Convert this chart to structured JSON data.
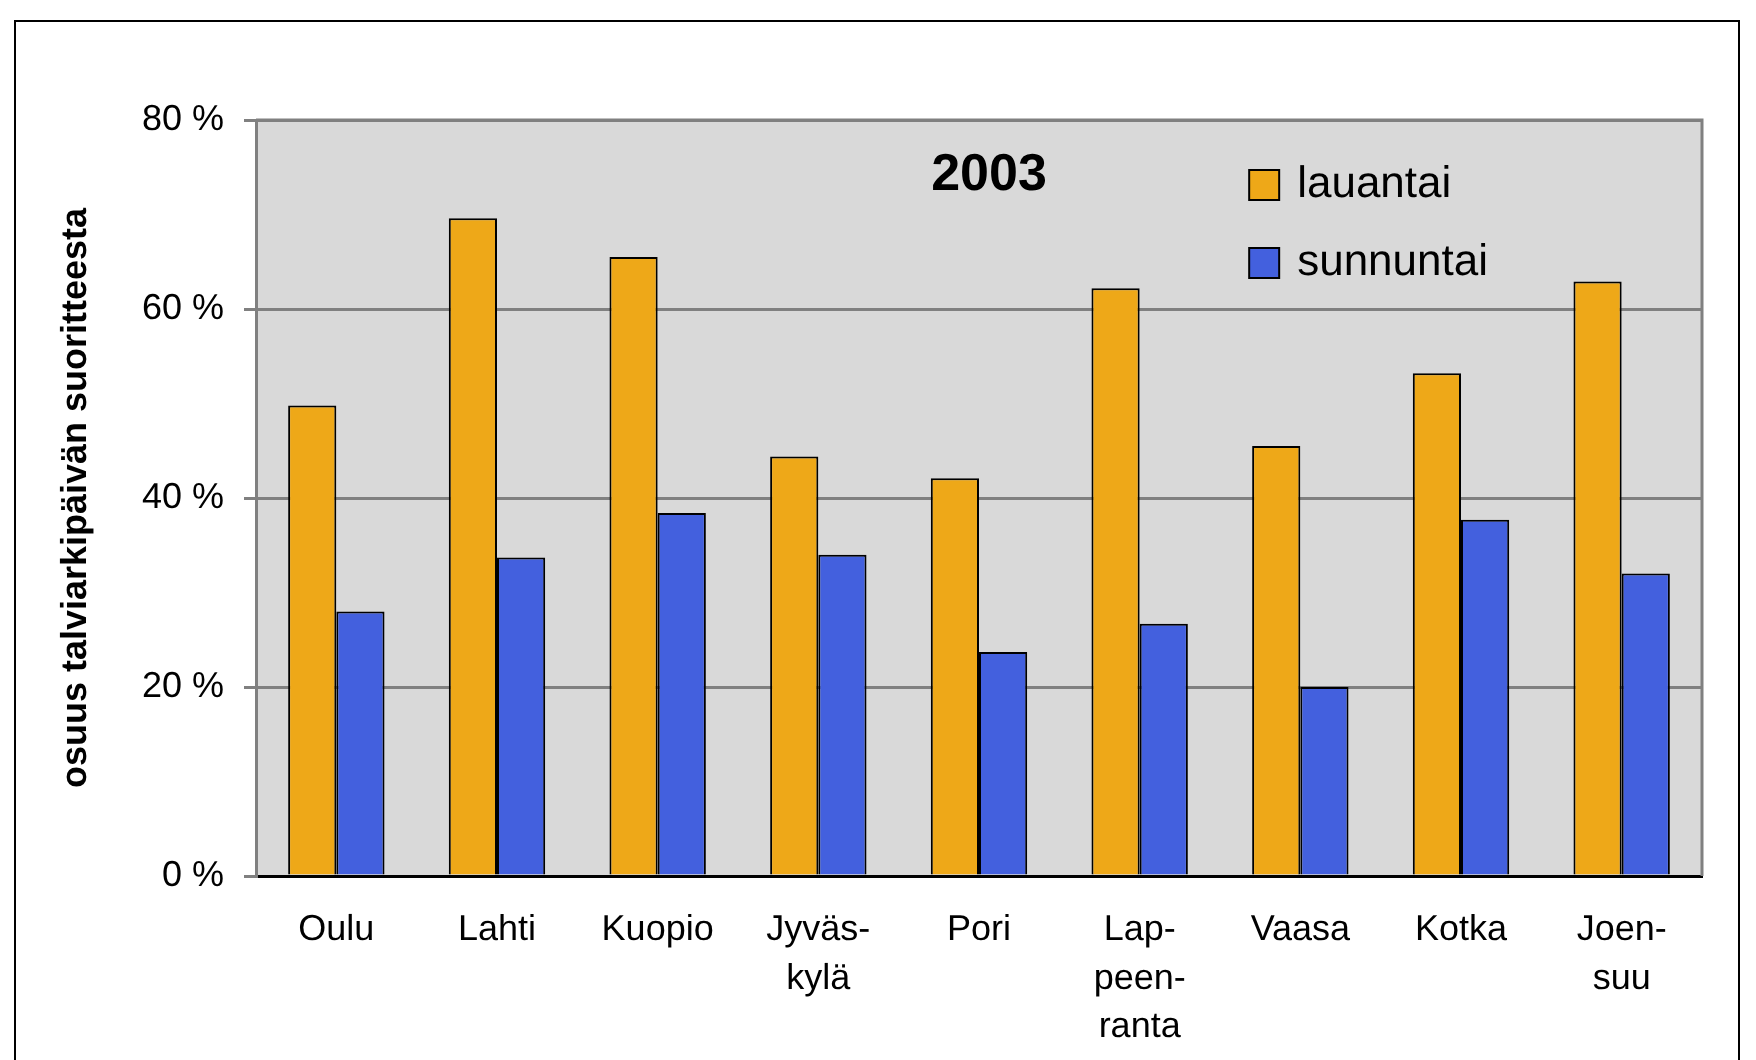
{
  "chart_data": {
    "type": "bar",
    "title": "2003",
    "ylabel": "osuus talviarkipäivän suoritteesta",
    "categories": [
      "Oulu",
      "Lahti",
      "Kuopio",
      "Jyväs-\nkylä",
      "Pori",
      "Lap-\npeen-\nranta",
      "Vaasa",
      "Kotka",
      "Joen-\nsuu"
    ],
    "series": [
      {
        "name": "lauantai",
        "color": "#eea818",
        "values": [
          49.8,
          69.6,
          65.5,
          44.4,
          42.1,
          62.2,
          45.5,
          53.2,
          62.9
        ]
      },
      {
        "name": "sunnuntai",
        "color": "#4360de",
        "values": [
          28.0,
          33.7,
          38.4,
          34.0,
          23.7,
          26.7,
          20.0,
          37.7,
          32.0
        ]
      }
    ],
    "ylim": [
      0,
      80
    ],
    "yticks": [
      {
        "value": 0,
        "label": "0 %"
      },
      {
        "value": 20,
        "label": "20 %"
      },
      {
        "value": 40,
        "label": "40 %"
      },
      {
        "value": 60,
        "label": "60 %"
      },
      {
        "value": 80,
        "label": "80 %"
      }
    ],
    "grid": "y",
    "legend": "top right"
  }
}
